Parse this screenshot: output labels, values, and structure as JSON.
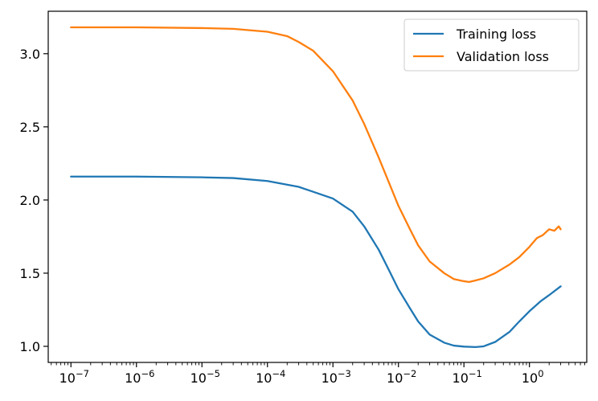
{
  "chart_data": {
    "type": "line",
    "title": "",
    "xlabel": "",
    "ylabel": "",
    "xscale": "log",
    "xlim": [
      4.5e-08,
      7.5
    ],
    "ylim": [
      0.89,
      3.29
    ],
    "grid": false,
    "legend_position": "top-right",
    "x_ticks": [
      {
        "value": 1e-07,
        "base": "10",
        "exp": "−7"
      },
      {
        "value": 1e-06,
        "base": "10",
        "exp": "−6"
      },
      {
        "value": 1e-05,
        "base": "10",
        "exp": "−5"
      },
      {
        "value": 0.0001,
        "base": "10",
        "exp": "−4"
      },
      {
        "value": 0.001,
        "base": "10",
        "exp": "−3"
      },
      {
        "value": 0.01,
        "base": "10",
        "exp": "−2"
      },
      {
        "value": 0.1,
        "base": "10",
        "exp": "−1"
      },
      {
        "value": 1,
        "base": "10",
        "exp": "0"
      }
    ],
    "y_ticks": [
      {
        "value": 1.0,
        "label": "1.0"
      },
      {
        "value": 1.5,
        "label": "1.5"
      },
      {
        "value": 2.0,
        "label": "2.0"
      },
      {
        "value": 2.5,
        "label": "2.5"
      },
      {
        "value": 3.0,
        "label": "3.0"
      }
    ],
    "series": [
      {
        "name": "Training loss",
        "color": "#1f77b4",
        "x": [
          1e-07,
          1e-06,
          1e-05,
          3e-05,
          0.0001,
          0.0003,
          0.001,
          0.002,
          0.003,
          0.005,
          0.007,
          0.01,
          0.015,
          0.02,
          0.03,
          0.05,
          0.07,
          0.1,
          0.15,
          0.2,
          0.3,
          0.5,
          0.7,
          1.0,
          1.5,
          2.0,
          3.0
        ],
        "y": [
          2.16,
          2.16,
          2.155,
          2.15,
          2.13,
          2.09,
          2.01,
          1.92,
          1.82,
          1.66,
          1.53,
          1.39,
          1.26,
          1.17,
          1.08,
          1.025,
          1.005,
          0.998,
          0.995,
          1.0,
          1.03,
          1.1,
          1.17,
          1.24,
          1.31,
          1.35,
          1.41
        ]
      },
      {
        "name": "Validation loss",
        "color": "#ff7f0e",
        "x": [
          1e-07,
          1e-06,
          1e-05,
          3e-05,
          0.0001,
          0.0002,
          0.0003,
          0.0005,
          0.001,
          0.002,
          0.003,
          0.005,
          0.007,
          0.01,
          0.015,
          0.02,
          0.03,
          0.05,
          0.07,
          0.1,
          0.12,
          0.15,
          0.2,
          0.3,
          0.5,
          0.7,
          1.0,
          1.3,
          1.6,
          2.0,
          2.4,
          2.8,
          3.0
        ],
        "y": [
          3.18,
          3.18,
          3.175,
          3.17,
          3.15,
          3.12,
          3.08,
          3.02,
          2.88,
          2.68,
          2.52,
          2.29,
          2.13,
          1.96,
          1.8,
          1.69,
          1.58,
          1.5,
          1.46,
          1.445,
          1.44,
          1.45,
          1.465,
          1.5,
          1.56,
          1.61,
          1.68,
          1.74,
          1.76,
          1.8,
          1.79,
          1.82,
          1.8
        ]
      }
    ]
  }
}
